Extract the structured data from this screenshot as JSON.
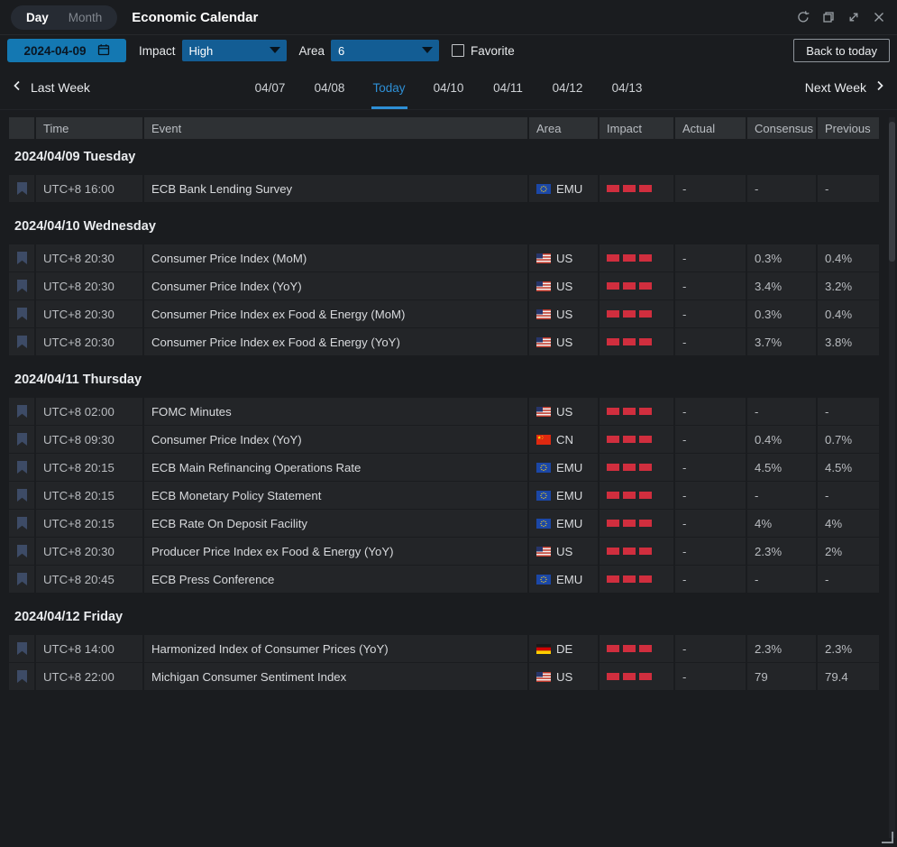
{
  "window": {
    "title": "Economic Calendar",
    "view_toggle": {
      "day_label": "Day",
      "month_label": "Month",
      "active": "Day"
    }
  },
  "filters": {
    "date_value": "2024-04-09",
    "impact_label": "Impact",
    "impact_value": "High",
    "area_label": "Area",
    "area_value": "6",
    "favorite_label": "Favorite",
    "favorite_checked": false,
    "back_to_today_label": "Back to today"
  },
  "week_nav": {
    "last_week_label": "Last Week",
    "next_week_label": "Next Week",
    "days": [
      {
        "label": "04/07",
        "active": false
      },
      {
        "label": "04/08",
        "active": false
      },
      {
        "label": "Today",
        "active": true
      },
      {
        "label": "04/10",
        "active": false
      },
      {
        "label": "04/11",
        "active": false
      },
      {
        "label": "04/12",
        "active": false
      },
      {
        "label": "04/13",
        "active": false
      }
    ]
  },
  "table": {
    "headers": [
      "",
      "Time",
      "Event",
      "Area",
      "Impact",
      "Actual",
      "Consensus",
      "Previous"
    ],
    "sections": [
      {
        "date": "2024/04/09 Tuesday",
        "rows": [
          {
            "time": "UTC+8 16:00",
            "event": "ECB Bank Lending Survey",
            "area": "EMU",
            "flag": "eu",
            "impact": 3,
            "actual": "-",
            "consensus": "-",
            "previous": "-"
          }
        ]
      },
      {
        "date": "2024/04/10 Wednesday",
        "rows": [
          {
            "time": "UTC+8 20:30",
            "event": "Consumer Price Index (MoM)",
            "area": "US",
            "flag": "us",
            "impact": 3,
            "actual": "-",
            "consensus": "0.3%",
            "previous": "0.4%"
          },
          {
            "time": "UTC+8 20:30",
            "event": "Consumer Price Index (YoY)",
            "area": "US",
            "flag": "us",
            "impact": 3,
            "actual": "-",
            "consensus": "3.4%",
            "previous": "3.2%"
          },
          {
            "time": "UTC+8 20:30",
            "event": "Consumer Price Index ex Food & Energy (MoM)",
            "area": "US",
            "flag": "us",
            "impact": 3,
            "actual": "-",
            "consensus": "0.3%",
            "previous": "0.4%"
          },
          {
            "time": "UTC+8 20:30",
            "event": "Consumer Price Index ex Food & Energy (YoY)",
            "area": "US",
            "flag": "us",
            "impact": 3,
            "actual": "-",
            "consensus": "3.7%",
            "previous": "3.8%"
          }
        ]
      },
      {
        "date": "2024/04/11 Thursday",
        "rows": [
          {
            "time": "UTC+8 02:00",
            "event": "FOMC Minutes",
            "area": "US",
            "flag": "us",
            "impact": 3,
            "actual": "-",
            "consensus": "-",
            "previous": "-"
          },
          {
            "time": "UTC+8 09:30",
            "event": "Consumer Price Index (YoY)",
            "area": "CN",
            "flag": "cn",
            "impact": 3,
            "actual": "-",
            "consensus": "0.4%",
            "previous": "0.7%"
          },
          {
            "time": "UTC+8 20:15",
            "event": "ECB Main Refinancing Operations Rate",
            "area": "EMU",
            "flag": "eu",
            "impact": 3,
            "actual": "-",
            "consensus": "4.5%",
            "previous": "4.5%"
          },
          {
            "time": "UTC+8 20:15",
            "event": "ECB Monetary Policy Statement",
            "area": "EMU",
            "flag": "eu",
            "impact": 3,
            "actual": "-",
            "consensus": "-",
            "previous": "-"
          },
          {
            "time": "UTC+8 20:15",
            "event": "ECB Rate On Deposit Facility",
            "area": "EMU",
            "flag": "eu",
            "impact": 3,
            "actual": "-",
            "consensus": "4%",
            "previous": "4%"
          },
          {
            "time": "UTC+8 20:30",
            "event": "Producer Price Index ex Food & Energy (YoY)",
            "area": "US",
            "flag": "us",
            "impact": 3,
            "actual": "-",
            "consensus": "2.3%",
            "previous": "2%"
          },
          {
            "time": "UTC+8 20:45",
            "event": "ECB Press Conference",
            "area": "EMU",
            "flag": "eu",
            "impact": 3,
            "actual": "-",
            "consensus": "-",
            "previous": "-"
          }
        ]
      },
      {
        "date": "2024/04/12 Friday",
        "rows": [
          {
            "time": "UTC+8 14:00",
            "event": "Harmonized Index of Consumer Prices (YoY)",
            "area": "DE",
            "flag": "de",
            "impact": 3,
            "actual": "-",
            "consensus": "2.3%",
            "previous": "2.3%"
          },
          {
            "time": "UTC+8 22:00",
            "event": "Michigan Consumer Sentiment Index",
            "area": "US",
            "flag": "us",
            "impact": 3,
            "actual": "-",
            "consensus": "79",
            "previous": "79.4"
          }
        ]
      }
    ]
  },
  "colors": {
    "accent_blue": "#2e8fd5",
    "dropdown_blue": "#135d94",
    "date_field_blue": "#1478b2",
    "impact_red": "#d02e3e"
  }
}
